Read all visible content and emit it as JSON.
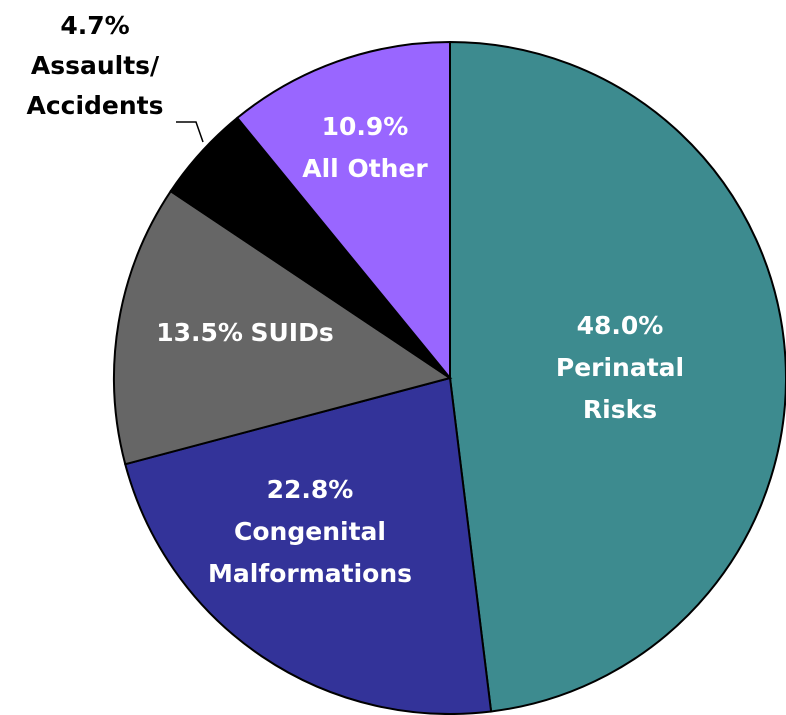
{
  "chart_data": {
    "type": "pie",
    "categories": [
      "Perinatal Risks",
      "Congenital Malformations",
      "SUIDs",
      "Assaults/ Accidents",
      "All Other"
    ],
    "values": [
      48.0,
      22.8,
      13.5,
      4.7,
      10.9
    ],
    "value_labels": [
      "48.0%",
      "22.8%",
      "13.5%",
      "4.7%",
      "10.9%"
    ],
    "colors": [
      "#3d8b8f",
      "#333399",
      "#666666",
      "#000000",
      "#9966ff"
    ]
  }
}
